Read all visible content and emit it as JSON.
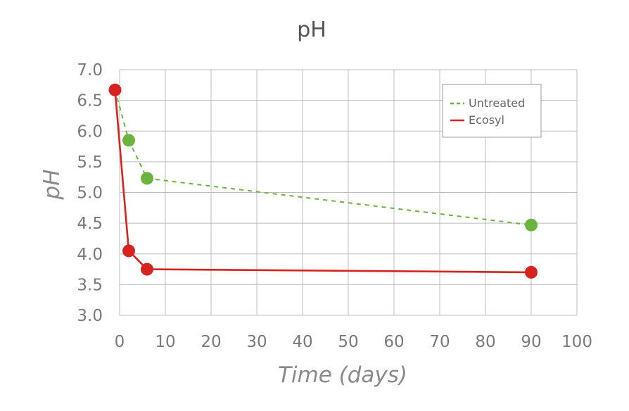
{
  "chart_data": {
    "type": "line",
    "title": "pH",
    "xlabel": "Time (days)",
    "ylabel": "pH",
    "xlim": [
      0,
      100
    ],
    "ylim": [
      3.0,
      7.0
    ],
    "x_ticks": [
      "0",
      "10",
      "20",
      "30",
      "40",
      "50",
      "60",
      "70",
      "80",
      "90",
      "100"
    ],
    "y_ticks": [
      "7.0",
      "6.5",
      "6.0",
      "5.5",
      "5.0",
      "4.5",
      "4.0",
      "3.5",
      "3.0"
    ],
    "grid": true,
    "legend_position": "top-right",
    "series": [
      {
        "name": "Untreated",
        "color": "#6ab43e",
        "line_style": "dashed",
        "points": [
          [
            2,
            5.85
          ],
          [
            6,
            5.23
          ],
          [
            90,
            4.47
          ]
        ]
      },
      {
        "name": "Ecosyl",
        "color": "#d6231f",
        "line_style": "solid",
        "points": [
          [
            -1,
            6.67
          ],
          [
            2,
            4.05
          ],
          [
            6,
            3.75
          ],
          [
            90,
            3.7
          ]
        ]
      }
    ]
  }
}
